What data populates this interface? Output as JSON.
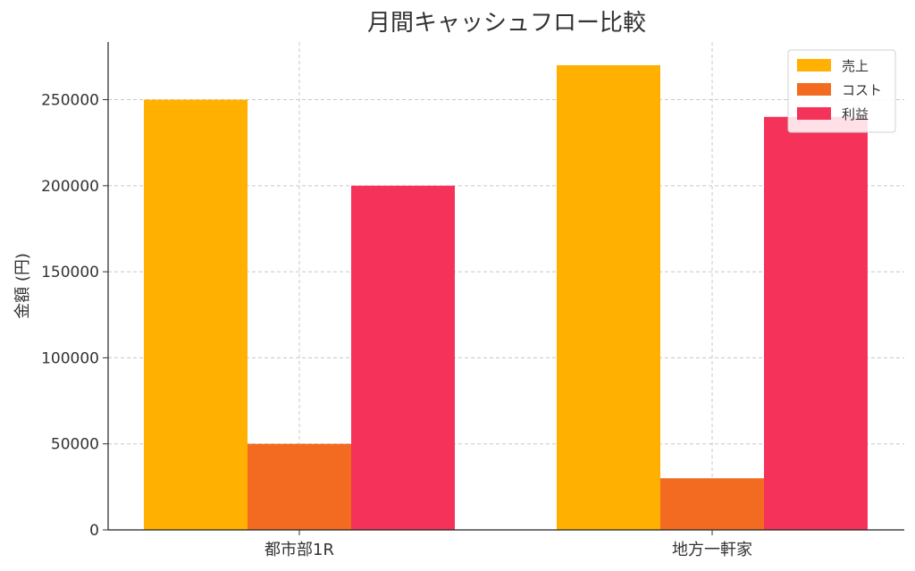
{
  "chart_data": {
    "type": "bar",
    "title": "月間キャッシュフロー比較",
    "xlabel": "",
    "ylabel": "金額 (円)",
    "categories": [
      "都市部1R",
      "地方一軒家"
    ],
    "series": [
      {
        "name": "売上",
        "values": [
          250000,
          270000
        ],
        "color": "#FFB000"
      },
      {
        "name": "コスト",
        "values": [
          50000,
          30000
        ],
        "color": "#F26B21"
      },
      {
        "name": "利益",
        "values": [
          200000,
          240000
        ],
        "color": "#F5325A"
      }
    ],
    "yticks": [
      0,
      50000,
      100000,
      150000,
      200000,
      250000
    ],
    "ylim": [
      0,
      283500
    ],
    "grid": true,
    "legend_position": "top-right"
  }
}
